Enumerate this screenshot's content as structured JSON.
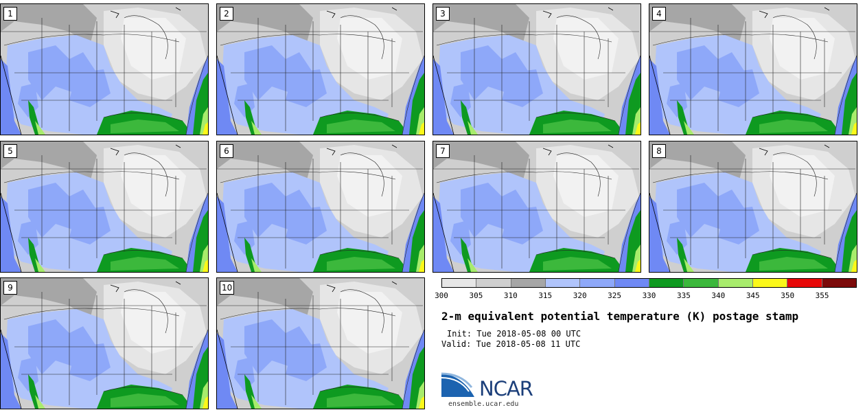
{
  "panels": [
    {
      "label": "1"
    },
    {
      "label": "2"
    },
    {
      "label": "3"
    },
    {
      "label": "4"
    },
    {
      "label": "5"
    },
    {
      "label": "6"
    },
    {
      "label": "7"
    },
    {
      "label": "8"
    },
    {
      "label": "9"
    },
    {
      "label": "10"
    }
  ],
  "colorbar": {
    "colors": [
      "#e6e6e6",
      "#cfcfcf",
      "#a6a6a6",
      "#b0c4fb",
      "#8ea8f9",
      "#6f89f4",
      "#0e9a20",
      "#3cb83c",
      "#a8ec6c",
      "#fbf81a",
      "#e80808",
      "#7c0a0a"
    ],
    "ticks": [
      "300",
      "305",
      "310",
      "315",
      "320",
      "325",
      "330",
      "335",
      "340",
      "345",
      "350",
      "355"
    ]
  },
  "title": "2-m equivalent potential temperature (K) postage stamp",
  "init_text": "Init: Tue 2018-05-08 00 UTC",
  "valid_text": "Valid: Tue 2018-05-08 11 UTC",
  "logo_text": "NCAR",
  "url_text": "ensemble.ucar.edu"
}
